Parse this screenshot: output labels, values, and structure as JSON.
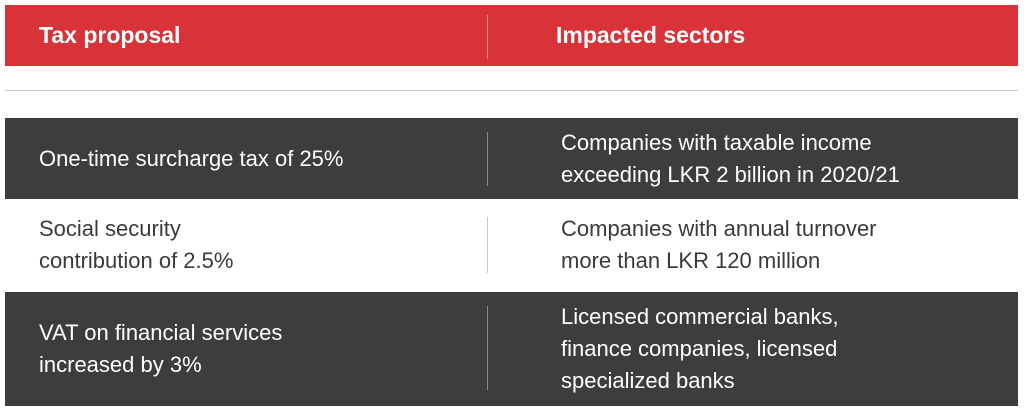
{
  "header": {
    "col1": "Tax proposal",
    "col2": "Impacted sectors"
  },
  "rows": [
    {
      "proposal": [
        "One-time surcharge tax  of 25%"
      ],
      "sectors": [
        "Companies with taxable income",
        "exceeding LKR 2 billion in 2020/21"
      ]
    },
    {
      "proposal": [
        "Social security",
        "contribution of 2.5%"
      ],
      "sectors": [
        "Companies with annual turnover",
        "more than LKR 120 million"
      ]
    },
    {
      "proposal": [
        "VAT on financial services",
        "increased by 3%"
      ],
      "sectors": [
        "Licensed commercial banks,",
        "finance companies, licensed",
        "specialized banks"
      ]
    }
  ],
  "colors": {
    "header_bg": "#d83338",
    "dark_row_bg": "#3d3d3d",
    "light_row_bg": "#ffffff"
  }
}
